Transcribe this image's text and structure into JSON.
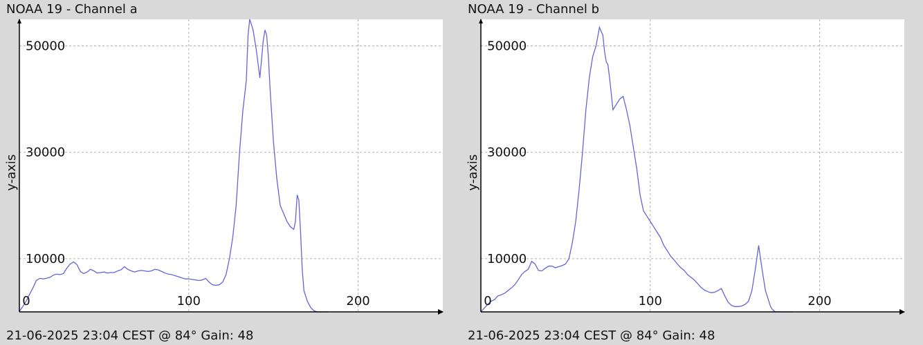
{
  "chart_data": [
    {
      "type": "line",
      "title": "NOAA 19 - Channel a",
      "footer": "21-06-2025 23:04 CEST @ 84° Gain: 48",
      "xlabel": "",
      "ylabel": "y-axis",
      "xlim": [
        0,
        250
      ],
      "ylim": [
        0,
        55000
      ],
      "x_ticks": [
        0,
        100,
        200
      ],
      "y_ticks": [
        10000,
        30000,
        50000
      ],
      "grid": true,
      "line_color": "#6464d8",
      "series": [
        {
          "x": [
            0,
            2,
            4,
            6,
            8,
            10,
            12,
            14,
            16,
            18,
            20,
            22,
            24,
            26,
            28,
            30,
            32,
            34,
            36,
            38,
            40,
            42,
            44,
            46,
            48,
            50,
            52,
            54,
            56,
            58,
            60,
            62,
            64,
            66,
            68,
            70,
            72,
            74,
            76,
            78,
            80,
            82,
            84,
            86,
            88,
            90,
            92,
            94,
            96,
            98,
            100,
            102,
            104,
            106,
            108,
            110,
            112,
            114,
            116,
            118,
            120,
            122,
            124,
            126,
            128,
            130,
            132,
            134,
            135,
            136,
            137,
            138,
            140,
            142,
            144,
            145,
            146,
            147,
            148,
            150,
            152,
            154,
            156,
            158,
            160,
            162,
            163,
            164,
            165,
            166,
            167,
            168,
            170,
            172,
            174,
            176,
            178,
            180,
            182
          ],
          "values": [
            100,
            1000,
            2000,
            3300,
            4500,
            5900,
            6300,
            6200,
            6300,
            6500,
            6900,
            7100,
            7000,
            7200,
            8200,
            9000,
            9400,
            8900,
            7600,
            7200,
            7500,
            8000,
            7700,
            7300,
            7400,
            7500,
            7300,
            7400,
            7400,
            7700,
            7900,
            8500,
            8000,
            7700,
            7500,
            7700,
            7800,
            7700,
            7600,
            7700,
            8000,
            7900,
            7600,
            7300,
            7100,
            7000,
            6800,
            6600,
            6400,
            6200,
            6200,
            6100,
            6000,
            5900,
            6000,
            6300,
            5600,
            5100,
            5000,
            5100,
            5600,
            7000,
            10000,
            14000,
            20000,
            30000,
            38000,
            43500,
            52000,
            55000,
            54000,
            53000,
            49000,
            44000,
            51000,
            53000,
            52000,
            48000,
            42000,
            32000,
            25000,
            20000,
            18500,
            17000,
            16000,
            15500,
            17000,
            22000,
            21000,
            15000,
            8000,
            4000,
            2000,
            800,
            200,
            0,
            0,
            0,
            0
          ]
        }
      ]
    },
    {
      "type": "line",
      "title": "NOAA 19 - Channel b",
      "footer": "21-06-2025 23:04 CEST @ 84° Gain: 48",
      "xlabel": "",
      "ylabel": "y-axis",
      "xlim": [
        0,
        250
      ],
      "ylim": [
        0,
        55000
      ],
      "x_ticks": [
        0,
        100,
        200
      ],
      "y_ticks": [
        10000,
        30000,
        50000
      ],
      "grid": true,
      "line_color": "#6464d8",
      "series": [
        {
          "x": [
            0,
            2,
            4,
            6,
            8,
            10,
            12,
            14,
            16,
            18,
            20,
            22,
            24,
            26,
            28,
            30,
            32,
            34,
            36,
            38,
            40,
            42,
            44,
            46,
            48,
            50,
            52,
            54,
            56,
            58,
            60,
            62,
            64,
            66,
            68,
            70,
            72,
            73,
            74,
            75,
            76,
            77,
            78,
            80,
            82,
            84,
            86,
            88,
            90,
            92,
            94,
            96,
            98,
            100,
            102,
            104,
            106,
            108,
            110,
            112,
            114,
            116,
            118,
            120,
            122,
            124,
            126,
            128,
            130,
            132,
            134,
            136,
            138,
            140,
            142,
            144,
            146,
            148,
            150,
            152,
            154,
            156,
            158,
            160,
            162,
            164,
            166,
            168,
            170,
            171,
            172,
            173,
            174,
            176,
            178,
            180,
            182,
            184
          ],
          "values": [
            0,
            700,
            1400,
            2000,
            2300,
            3000,
            3200,
            3500,
            4000,
            4500,
            5100,
            6000,
            7000,
            7600,
            8000,
            9500,
            9000,
            7800,
            7700,
            8200,
            8600,
            8600,
            8300,
            8500,
            8700,
            9000,
            10000,
            13000,
            17000,
            23000,
            30000,
            38000,
            44000,
            48000,
            50000,
            53500,
            52000,
            49000,
            47000,
            46500,
            44000,
            41000,
            38000,
            39000,
            40000,
            40500,
            38000,
            35000,
            31000,
            27000,
            22000,
            19000,
            18000,
            17000,
            16000,
            15000,
            14000,
            12500,
            11500,
            10500,
            9800,
            9000,
            8300,
            7800,
            7000,
            6500,
            6000,
            5300,
            4600,
            4100,
            3800,
            3600,
            3700,
            4000,
            4400,
            3000,
            1800,
            1200,
            1000,
            1000,
            1100,
            1400,
            2000,
            4000,
            8000,
            12500,
            8000,
            4000,
            2000,
            1000,
            500,
            200,
            0,
            0,
            0,
            0,
            0,
            0
          ]
        }
      ]
    }
  ]
}
